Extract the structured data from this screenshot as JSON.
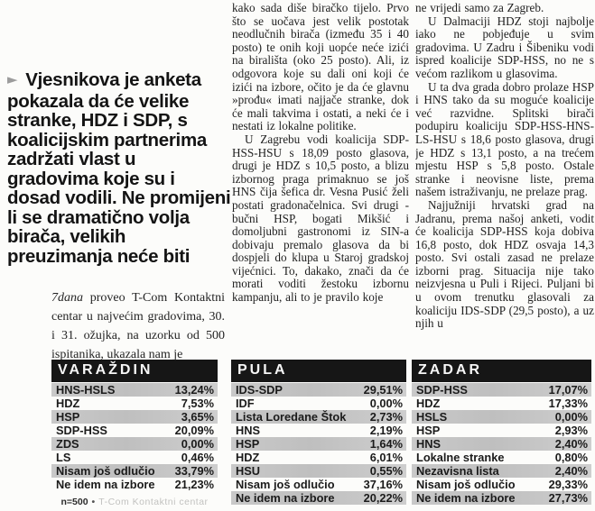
{
  "article": {
    "lead": {
      "marker": "►",
      "text": "Vjesnikova je anketa pokazala da će velike stranke, HDZ i SDP, s koalicijskim partnerima zadržati vlast u gradovima koje su i dosad vodili. Ne promijeni li se dramatično volja birača, velikih preuzimanja neće biti"
    },
    "credit": {
      "magazine": "7dana",
      "text": " proveo T-Com Kontaktni centar u najvećim gradovima, 30. i 31. ožujka, na uzorku od 500 ispitanika, ukazala nam je"
    },
    "column2": {
      "paragraphs": [
        "kako sada diše biračko tijelo. Prvo što se uočava jest velik postotak neodlučnih birača (između 35 i 40 posto) te onih koji uopće neće izići na birališta (oko 25 posto). Ali, iz odgovora koje su dali oni koji će izići na izbore, očito je da će glavnu »prođu« imati najjače stranke, dok će mali takvima i ostati, a neki će i nestati iz lokalne politike.",
        "U Zagrebu vodi koalicija SDP-HSS-HSU s 18,09 posto glasova, drugi je HDZ s 10,5 posto, a blizu izbornog praga primaknuo se još HNS čija šefica dr. Vesna Pusić želi postati gradonačelnica. Svi drugi - bučni HSP, bogati Mikšić i domoljubni gastronomi iz SIN-a dobivaju premalo glasova da bi dospjeli do klupa u Staroj gradskoj vijećnici. To, dakako, znači da će morati voditi žestoku izbornu kampanju, ali to je pravilo koje"
      ]
    },
    "column3": {
      "paragraphs": [
        "ne vrijedi samo za Zagreb.",
        "U Dalmaciji HDZ stoji najbolje iako ne pobjeđuje u svim gradovima. U Zadru i Šibeniku vodi ispred koalicije SDP-HSS, no ne s većom razlikom u glasovima.",
        "U ta dva grada dobro prolaze HSP i HNS tako da su moguće koalicije već razvidne. Splitski birači podupiru koaliciju SDP-HSS-HNS-LS-HSU s 18,6 posto glasova, drugi je HDZ s 13,1 posto, a na trećem mjestu HSP s 5,8 posto. Ostale stranke i neovisne liste, prema našem istraživanju, ne prelaze prag.",
        "Najjužniji hrvatski grad na Jadranu, prema našoj anketi, vodit će koalicija SDP-HSS koja dobiva 16,8 posto, dok HDZ osvaja 14,3 posto. Svi ostali zasad ne prelaze izborni prag. Situacija nije tako neizvjesna u Puli i Rijeci. Puljani bi u ovom trenutku glasovali za koaliciju IDS-SDP (29,5 posto), a uz njih u"
      ]
    }
  },
  "polls": [
    {
      "title": "VARAŽDIN",
      "rows": [
        {
          "party": "HNS-HSLS",
          "value": "13,24%"
        },
        {
          "party": "HDZ",
          "value": "7,53%"
        },
        {
          "party": "HSP",
          "value": "3,65%"
        },
        {
          "party": "SDP-HSS",
          "value": "20,09%"
        },
        {
          "party": "ZDS",
          "value": "0,00%"
        },
        {
          "party": "LS",
          "value": "0,46%"
        },
        {
          "party": "Nisam još odlučio",
          "value": "33,79%"
        },
        {
          "party": "Ne idem na izbore",
          "value": "21,23%"
        }
      ],
      "footer": {
        "n": "n=500",
        "sep": "•",
        "source": "T-Com Kontaktni centar"
      }
    },
    {
      "title": "PULA",
      "rows": [
        {
          "party": "IDS-SDP",
          "value": "29,51%"
        },
        {
          "party": "IDF",
          "value": "0,00%"
        },
        {
          "party": "Lista Loredane Štok",
          "value": "2,73%"
        },
        {
          "party": "HNS",
          "value": "2,19%"
        },
        {
          "party": "HSP",
          "value": "1,64%"
        },
        {
          "party": "HDZ",
          "value": "6,01%"
        },
        {
          "party": "HSU",
          "value": "0,55%"
        },
        {
          "party": "Nisam još odlučio",
          "value": "37,16%"
        },
        {
          "party": "Ne idem na izbore",
          "value": "20,22%"
        }
      ]
    },
    {
      "title": "ZADAR",
      "rows": [
        {
          "party": "SDP-HSS",
          "value": "17,07%"
        },
        {
          "party": "HDZ",
          "value": "17,33%"
        },
        {
          "party": "HSLS",
          "value": "0,00%"
        },
        {
          "party": "HSP",
          "value": "2,93%"
        },
        {
          "party": "HNS",
          "value": "2,40%"
        },
        {
          "party": "Lokalne stranke",
          "value": "0,80%"
        },
        {
          "party": "Nezavisna lista",
          "value": "2,40%"
        },
        {
          "party": "Nisam još odlučio",
          "value": "29,33%"
        },
        {
          "party": "Ne idem na izbore",
          "value": "27,73%"
        }
      ]
    }
  ],
  "colors": {
    "page_background": "#fcfcfa",
    "table_header_bar": "#161616",
    "table_header_text": "#f6f6f6",
    "row_stripe": "#c6c6c6",
    "lead_text": "#141414",
    "marker_gray": "#9c9c9c",
    "faint_source_text": "#c2c2c0"
  }
}
